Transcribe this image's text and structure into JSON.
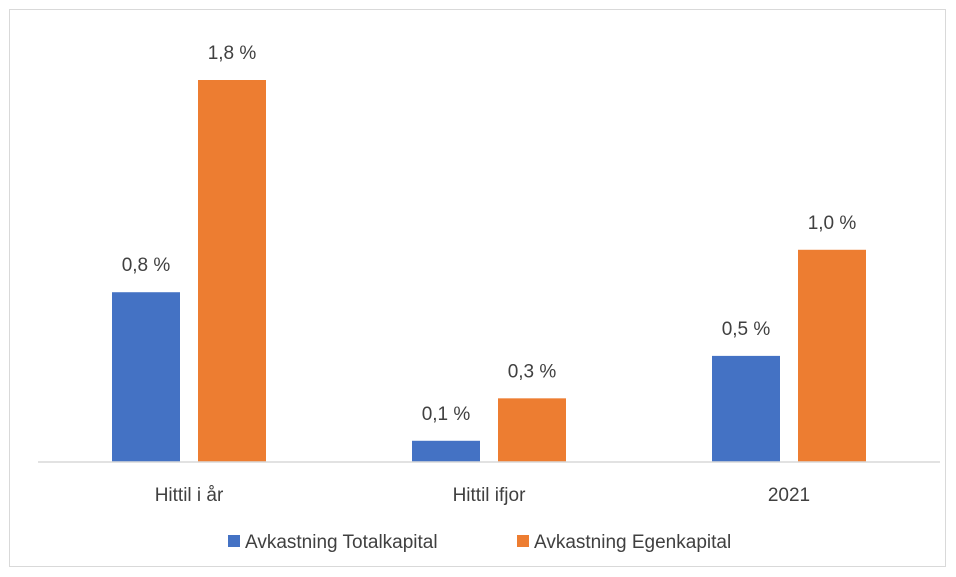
{
  "chart_data": {
    "type": "bar",
    "title": "",
    "xlabel": "",
    "ylabel": "",
    "categories": [
      "Hittil i år",
      "Hittil ifjor",
      "2021"
    ],
    "series": [
      {
        "name": "Avkastning Totalkapital",
        "values": [
          0.8,
          0.1,
          0.5
        ],
        "labels": [
          "0,8 %",
          "0,1 %",
          "0,5 %"
        ],
        "color": "#4472c4"
      },
      {
        "name": "Avkastning Egenkapital",
        "values": [
          1.8,
          0.3,
          1.0
        ],
        "labels": [
          "1,8 %",
          "0,3 %",
          "1,0 %"
        ],
        "color": "#ed7d31"
      }
    ],
    "ylim": [
      0,
      1.8
    ],
    "grid": false,
    "legend_position": "bottom"
  }
}
